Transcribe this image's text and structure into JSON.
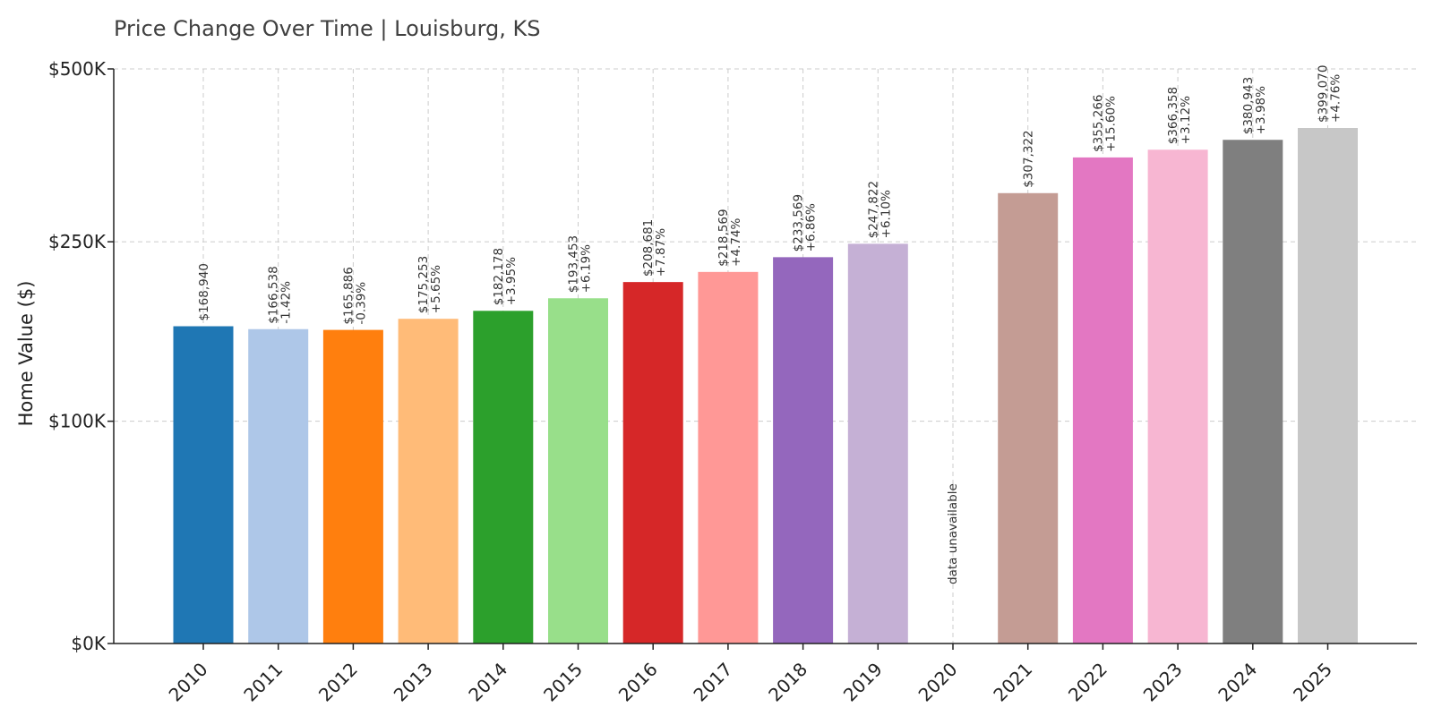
{
  "chart_data": {
    "type": "bar",
    "title": "Price Change Over Time | Louisburg, KS",
    "ylabel": "Home Value ($)",
    "xlabel": "",
    "categories": [
      "2010",
      "2011",
      "2012",
      "2013",
      "2014",
      "2015",
      "2016",
      "2017",
      "2018",
      "2019",
      "2020",
      "2021",
      "2022",
      "2023",
      "2024",
      "2025"
    ],
    "values": [
      168940,
      166538,
      165886,
      175253,
      182178,
      193453,
      208681,
      218569,
      233569,
      247822,
      null,
      307322,
      355266,
      366358,
      380943,
      399070
    ],
    "value_labels": [
      "$168,940",
      "$166,538",
      "$165,886",
      "$175,253",
      "$182,178",
      "$193,453",
      "$208,681",
      "$218,569",
      "$233,569",
      "$247,822",
      "",
      "$307,322",
      "$355,266",
      "$366,358",
      "$380,943",
      "$399,070"
    ],
    "change_labels": [
      "",
      "-1.42%",
      "-0.39%",
      "+5.65%",
      "+3.95%",
      "+6.19%",
      "+7.87%",
      "+4.74%",
      "+6.86%",
      "+6.10%",
      "",
      "",
      "+15.60%",
      "+3.12%",
      "+3.98%",
      "+4.76%"
    ],
    "missing_label": "data unavailable",
    "colors": [
      "#1f77b4",
      "#aec7e8",
      "#ff7f0e",
      "#ffbb78",
      "#2ca02c",
      "#98df8a",
      "#d62728",
      "#ff9896",
      "#9467bd",
      "#c5b0d5",
      "#8c564b",
      "#c49c94",
      "#e377c2",
      "#f7b6d2",
      "#7f7f7f",
      "#c7c7c7"
    ],
    "yticks": [
      0,
      100000,
      250000,
      500000
    ],
    "ytick_labels": [
      "$0K",
      "$100K",
      "$250K",
      "$500K"
    ],
    "ylim": [
      0,
      500000
    ],
    "yscale": "symlog",
    "grid": true
  }
}
